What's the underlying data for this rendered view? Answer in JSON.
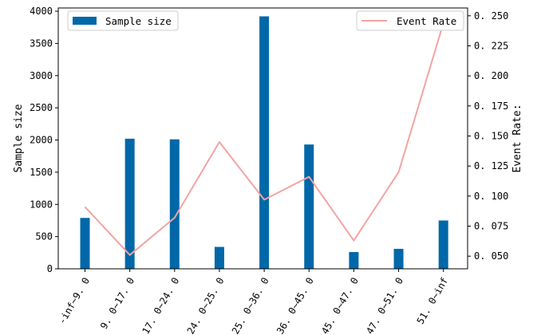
{
  "chart_data": {
    "type": "bar",
    "categories": [
      "-inf~9.0",
      "9.0~17.0",
      "17.0~24.0",
      "24.0~25.0",
      "25.0~36.0",
      "36.0~45.0",
      "45.0~47.0",
      "47.0~51.0",
      "51.0~inf"
    ],
    "series": [
      {
        "name": "Sample size",
        "type": "bar",
        "axis": "left",
        "color": "#0068a8",
        "values": [
          790,
          2020,
          2010,
          340,
          3920,
          1930,
          260,
          310,
          750
        ]
      },
      {
        "name": "Event Rate",
        "type": "line",
        "axis": "right",
        "color": "#f4a3a3",
        "values": [
          0.091,
          0.051,
          0.082,
          0.145,
          0.097,
          0.116,
          0.063,
          0.12,
          0.244
        ]
      }
    ],
    "ylabel": "Sample size",
    "y2label": "Event Rate:",
    "ylim": [
      0,
      4050
    ],
    "y2lim": [
      0.0395,
      0.2565
    ],
    "yticks": [
      0,
      500,
      1000,
      1500,
      2000,
      2500,
      3000,
      3500,
      4000
    ],
    "y2ticks": [
      0.05,
      0.075,
      0.1,
      0.125,
      0.15,
      0.175,
      0.2,
      0.225,
      0.25
    ],
    "ytick_labels": [
      "0",
      "500",
      "1000",
      "1500",
      "2000",
      "2500",
      "3000",
      "3500",
      "4000"
    ],
    "y2tick_labels": [
      "0. 050",
      "0. 075",
      "0. 100",
      "0. 125",
      "0. 150",
      "0. 175",
      "0. 200",
      "0. 225",
      "0. 250"
    ],
    "xtick_labels": [
      "-inf~9. 0",
      "9. 0~17. 0",
      "17. 0~24. 0",
      "24. 0~25. 0",
      "25. 0~36. 0",
      "36. 0~45. 0",
      "45. 0~47. 0",
      "47. 0~51. 0",
      "51. 0~inf"
    ],
    "grid": false,
    "legend": [
      {
        "label": "Sample size",
        "placement": "top-left"
      },
      {
        "label": "Event Rate",
        "placement": "top-right"
      }
    ]
  }
}
